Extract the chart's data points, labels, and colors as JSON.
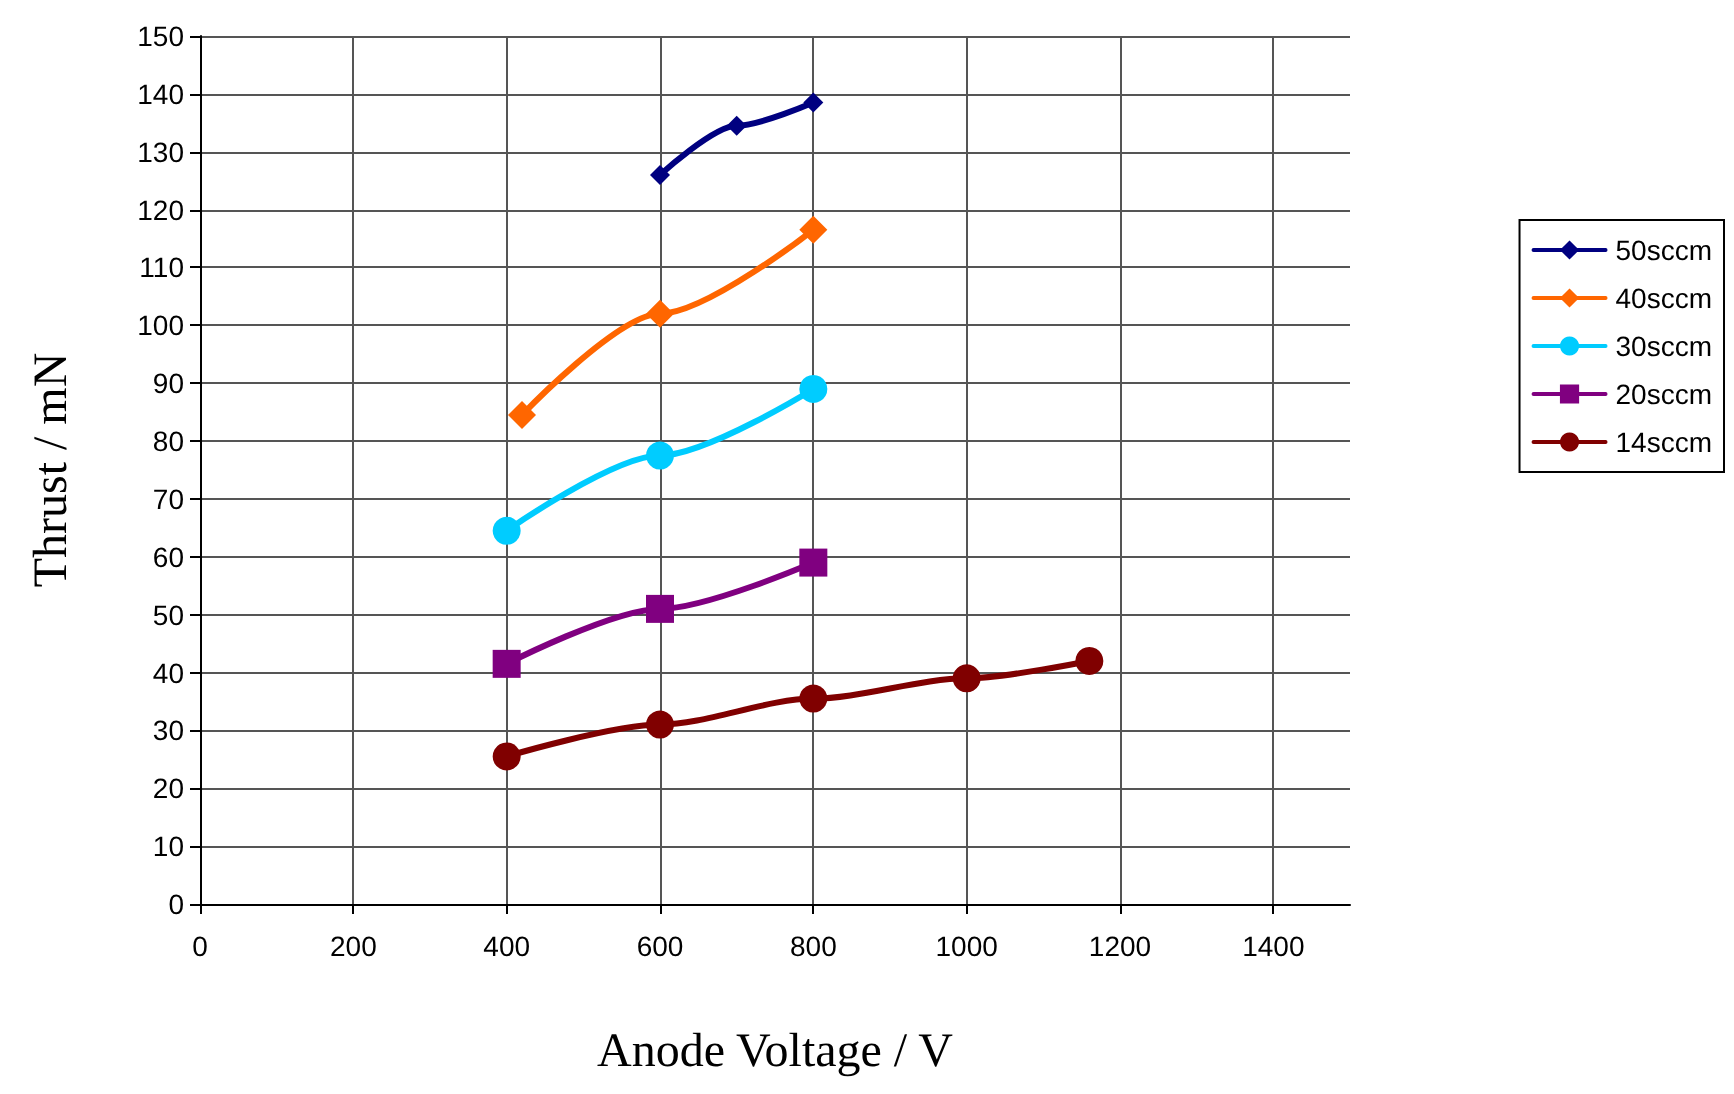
{
  "chart_data": {
    "type": "line",
    "xlabel": "Anode Voltage / V",
    "ylabel": "Thrust / mN",
    "xlim": [
      0,
      1500
    ],
    "xticks": [
      0,
      200,
      400,
      600,
      800,
      1000,
      1200,
      1400
    ],
    "ylim": [
      0,
      150
    ],
    "yticks": [
      0,
      10,
      20,
      30,
      40,
      50,
      60,
      70,
      80,
      90,
      100,
      110,
      120,
      130,
      140,
      150
    ],
    "grid": true,
    "legend": "right",
    "series": [
      {
        "name": "50sccm",
        "color": "#000080",
        "marker": "diamond",
        "x": [
          600,
          700,
          800
        ],
        "values": [
          126,
          134.5,
          138.5
        ]
      },
      {
        "name": "40sccm",
        "color": "#ff6600",
        "marker": "diamond",
        "x": [
          420,
          600,
          800
        ],
        "values": [
          84.5,
          102,
          116.5
        ]
      },
      {
        "name": "30sccm",
        "color": "#00ccff",
        "marker": "circle",
        "x": [
          400,
          600,
          800
        ],
        "values": [
          64.5,
          77.5,
          89
        ]
      },
      {
        "name": "20sccm",
        "color": "#800080",
        "marker": "square",
        "x": [
          400,
          600,
          800
        ],
        "values": [
          41.5,
          51,
          59
        ]
      },
      {
        "name": "14sccm",
        "color": "#800000",
        "marker": "circle",
        "x": [
          400,
          600,
          800,
          1000,
          1160
        ],
        "values": [
          25.5,
          31,
          35.5,
          39,
          42
        ]
      }
    ]
  }
}
